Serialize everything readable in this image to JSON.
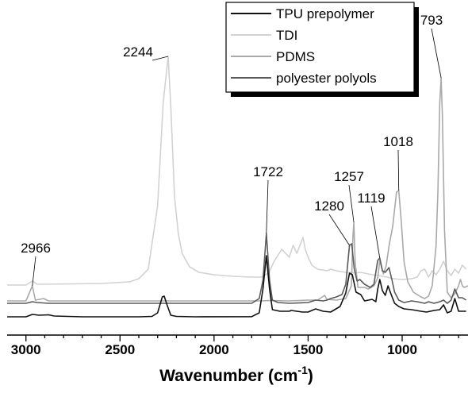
{
  "chart_data": {
    "type": "line",
    "title": "",
    "xlabel_main": "Wavenumber (cm",
    "xlabel_sup": "-1",
    "xlabel_close": ")",
    "ylabel": "",
    "xlim": [
      3100,
      650
    ],
    "x_reversed": true,
    "grid": false,
    "legend_position": "top-right",
    "xticks": [
      3000,
      2500,
      2000,
      1500,
      1000
    ],
    "series": [
      {
        "name": "TPU prepolymer",
        "color": "#111111",
        "points": [
          [
            3100,
            5
          ],
          [
            3000,
            5
          ],
          [
            2966,
            8
          ],
          [
            2930,
            7
          ],
          [
            2880,
            7.5
          ],
          [
            2850,
            6
          ],
          [
            2700,
            5
          ],
          [
            2400,
            5
          ],
          [
            2330,
            5.5
          ],
          [
            2300,
            10
          ],
          [
            2275,
            30
          ],
          [
            2265,
            31
          ],
          [
            2250,
            20
          ],
          [
            2230,
            7
          ],
          [
            2200,
            5.5
          ],
          [
            2100,
            5
          ],
          [
            1800,
            5.2
          ],
          [
            1760,
            10
          ],
          [
            1740,
            40
          ],
          [
            1722,
            82
          ],
          [
            1705,
            40
          ],
          [
            1690,
            14
          ],
          [
            1650,
            12
          ],
          [
            1600,
            12
          ],
          [
            1590,
            13
          ],
          [
            1560,
            12
          ],
          [
            1530,
            11
          ],
          [
            1500,
            11
          ],
          [
            1460,
            15
          ],
          [
            1420,
            12
          ],
          [
            1380,
            11
          ],
          [
            1330,
            18
          ],
          [
            1300,
            35
          ],
          [
            1280,
            60
          ],
          [
            1265,
            58
          ],
          [
            1245,
            36
          ],
          [
            1220,
            33
          ],
          [
            1200,
            25
          ],
          [
            1160,
            27
          ],
          [
            1140,
            24
          ],
          [
            1130,
            40
          ],
          [
            1119,
            52
          ],
          [
            1105,
            38
          ],
          [
            1090,
            32
          ],
          [
            1075,
            44
          ],
          [
            1060,
            34
          ],
          [
            1040,
            22
          ],
          [
            1018,
            18
          ],
          [
            990,
            15
          ],
          [
            950,
            14
          ],
          [
            900,
            12
          ],
          [
            870,
            11
          ],
          [
            830,
            13
          ],
          [
            800,
            14
          ],
          [
            780,
            20
          ],
          [
            760,
            10
          ],
          [
            740,
            12
          ],
          [
            720,
            28
          ],
          [
            700,
            12
          ],
          [
            680,
            12
          ],
          [
            660,
            12
          ]
        ]
      },
      {
        "name": "TDI",
        "color": "#d2d2d2",
        "points": [
          [
            3100,
            20
          ],
          [
            3000,
            20
          ],
          [
            2966,
            25
          ],
          [
            2940,
            21
          ],
          [
            2900,
            21
          ],
          [
            2600,
            22
          ],
          [
            2450,
            24
          ],
          [
            2400,
            28
          ],
          [
            2350,
            40
          ],
          [
            2300,
            120
          ],
          [
            2270,
            250
          ],
          [
            2244,
            308
          ],
          [
            2230,
            245
          ],
          [
            2210,
            130
          ],
          [
            2190,
            85
          ],
          [
            2170,
            60
          ],
          [
            2130,
            43
          ],
          [
            2080,
            36
          ],
          [
            2000,
            33
          ],
          [
            1900,
            31
          ],
          [
            1800,
            30
          ],
          [
            1750,
            30
          ],
          [
            1710,
            35
          ],
          [
            1680,
            50
          ],
          [
            1640,
            65
          ],
          [
            1620,
            60
          ],
          [
            1600,
            55
          ],
          [
            1580,
            70
          ],
          [
            1560,
            60
          ],
          [
            1540,
            72
          ],
          [
            1527,
            80
          ],
          [
            1515,
            65
          ],
          [
            1500,
            55
          ],
          [
            1480,
            45
          ],
          [
            1450,
            40
          ],
          [
            1400,
            38
          ],
          [
            1380,
            40
          ],
          [
            1350,
            38
          ],
          [
            1300,
            36
          ],
          [
            1270,
            36
          ],
          [
            1250,
            35
          ],
          [
            1220,
            36
          ],
          [
            1180,
            34
          ],
          [
            1130,
            32
          ],
          [
            1080,
            30
          ],
          [
            1050,
            28
          ],
          [
            1000,
            27
          ],
          [
            950,
            28
          ],
          [
            920,
            30
          ],
          [
            900,
            38
          ],
          [
            880,
            40
          ],
          [
            860,
            30
          ],
          [
            840,
            38
          ],
          [
            820,
            33
          ],
          [
            800,
            40
          ],
          [
            780,
            50
          ],
          [
            760,
            38
          ],
          [
            740,
            32
          ],
          [
            720,
            40
          ],
          [
            700,
            35
          ],
          [
            680,
            45
          ],
          [
            660,
            40
          ]
        ]
      },
      {
        "name": "PDMS",
        "color": "#a9a9a9",
        "points": [
          [
            3100,
            11
          ],
          [
            3000,
            11
          ],
          [
            2966,
            30
          ],
          [
            2950,
            12
          ],
          [
            2906,
            14
          ],
          [
            2880,
            11
          ],
          [
            2600,
            11
          ],
          [
            2200,
            11
          ],
          [
            2000,
            11
          ],
          [
            1800,
            11
          ],
          [
            1750,
            11
          ],
          [
            1700,
            11.5
          ],
          [
            1600,
            11
          ],
          [
            1500,
            12
          ],
          [
            1450,
            12
          ],
          [
            1412,
            18
          ],
          [
            1400,
            13
          ],
          [
            1350,
            12
          ],
          [
            1300,
            14
          ],
          [
            1270,
            30
          ],
          [
            1262,
            92
          ],
          [
            1257,
            110
          ],
          [
            1250,
            60
          ],
          [
            1235,
            28
          ],
          [
            1200,
            28
          ],
          [
            1180,
            26
          ],
          [
            1150,
            30
          ],
          [
            1130,
            40
          ],
          [
            1119,
            62
          ],
          [
            1100,
            45
          ],
          [
            1085,
            55
          ],
          [
            1070,
            80
          ],
          [
            1050,
            105
          ],
          [
            1030,
            148
          ],
          [
            1018,
            150
          ],
          [
            1005,
            112
          ],
          [
            990,
            60
          ],
          [
            970,
            35
          ],
          [
            940,
            22
          ],
          [
            900,
            16
          ],
          [
            880,
            14
          ],
          [
            860,
            17
          ],
          [
            840,
            30
          ],
          [
            820,
            80
          ],
          [
            810,
            150
          ],
          [
            800,
            260
          ],
          [
            793,
            292
          ],
          [
            786,
            245
          ],
          [
            775,
            100
          ],
          [
            760,
            22
          ],
          [
            740,
            15
          ],
          [
            720,
            20
          ],
          [
            700,
            30
          ],
          [
            690,
            38
          ],
          [
            680,
            30
          ],
          [
            670,
            28
          ],
          [
            650,
            30
          ]
        ]
      },
      {
        "name": "polyester polyols",
        "color": "#5a5a5a",
        "points": [
          [
            3100,
            16
          ],
          [
            3000,
            16
          ],
          [
            2966,
            18
          ],
          [
            2940,
            17
          ],
          [
            2880,
            16
          ],
          [
            2700,
            16
          ],
          [
            2400,
            16
          ],
          [
            2000,
            16
          ],
          [
            1800,
            16
          ],
          [
            1760,
            22
          ],
          [
            1740,
            45
          ],
          [
            1722,
            104
          ],
          [
            1705,
            45
          ],
          [
            1690,
            20
          ],
          [
            1660,
            17
          ],
          [
            1600,
            16
          ],
          [
            1500,
            17
          ],
          [
            1460,
            20
          ],
          [
            1420,
            19
          ],
          [
            1400,
            20
          ],
          [
            1380,
            22
          ],
          [
            1350,
            24
          ],
          [
            1320,
            27
          ],
          [
            1300,
            40
          ],
          [
            1280,
            89
          ],
          [
            1268,
            91
          ],
          [
            1255,
            60
          ],
          [
            1240,
            44
          ],
          [
            1225,
            46
          ],
          [
            1200,
            40
          ],
          [
            1170,
            36
          ],
          [
            1150,
            40
          ],
          [
            1130,
            70
          ],
          [
            1119,
            73
          ],
          [
            1105,
            57
          ],
          [
            1090,
            55
          ],
          [
            1070,
            61
          ],
          [
            1055,
            46
          ],
          [
            1040,
            30
          ],
          [
            1018,
            20
          ],
          [
            990,
            17
          ],
          [
            950,
            19
          ],
          [
            920,
            18
          ],
          [
            880,
            16
          ],
          [
            860,
            18
          ],
          [
            830,
            16
          ],
          [
            800,
            18
          ],
          [
            780,
            20
          ],
          [
            760,
            16
          ],
          [
            740,
            20
          ],
          [
            720,
            34
          ],
          [
            700,
            23
          ],
          [
            680,
            23
          ],
          [
            660,
            20
          ]
        ]
      }
    ],
    "annotations": [
      {
        "label": "2244",
        "x": 2244
      },
      {
        "label": "793",
        "x": 793
      },
      {
        "label": "1018",
        "x": 1018
      },
      {
        "label": "1722",
        "x": 1722
      },
      {
        "label": "1257",
        "x": 1257
      },
      {
        "label": "1280",
        "x": 1280
      },
      {
        "label": "1119",
        "x": 1119
      },
      {
        "label": "2966",
        "x": 2966
      }
    ]
  }
}
